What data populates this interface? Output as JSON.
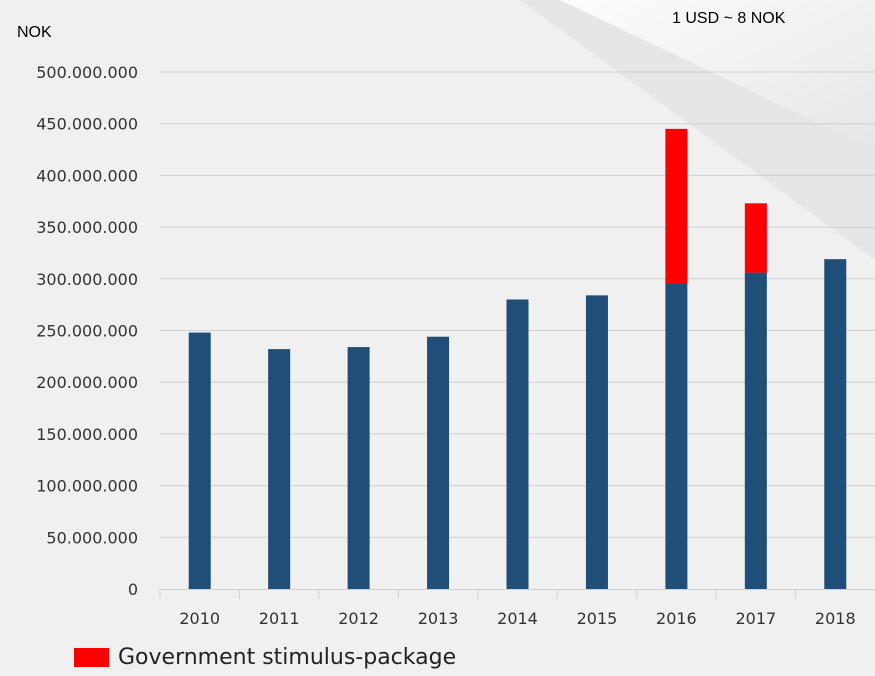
{
  "unit_label": "NOK",
  "note": "1 USD ~ 8 NOK",
  "colors": {
    "base": "#1f4e79",
    "stimulus": "#ff0000",
    "grid": "#d0d0d0",
    "background": "#f1f1f2"
  },
  "chart_data": {
    "type": "bar",
    "stacked": true,
    "categories": [
      "2010",
      "2011",
      "2012",
      "2013",
      "2014",
      "2015",
      "2016",
      "2017",
      "2018"
    ],
    "series": [
      {
        "values": [
          248000000,
          232000000,
          234000000,
          244000000,
          280000000,
          284000000,
          295000000,
          306000000,
          319000000
        ]
      },
      {
        "name": "Government stimulus-package",
        "values": [
          0,
          0,
          0,
          0,
          0,
          0,
          150000000,
          67000000,
          0
        ]
      }
    ],
    "ylim": [
      0,
      500000000
    ],
    "yticks": [
      0,
      50000000,
      100000000,
      150000000,
      200000000,
      250000000,
      300000000,
      350000000,
      400000000,
      450000000,
      500000000
    ],
    "ytick_labels": [
      "0",
      "50.000.000",
      "100.000.000",
      "150.000.000",
      "200.000.000",
      "250.000.000",
      "300.000.000",
      "350.000.000",
      "400.000.000",
      "450.000.000",
      "500.000.000"
    ],
    "grid": true,
    "legend": {
      "position": "bottom-left",
      "entries": [
        "Government stimulus-package"
      ]
    }
  }
}
